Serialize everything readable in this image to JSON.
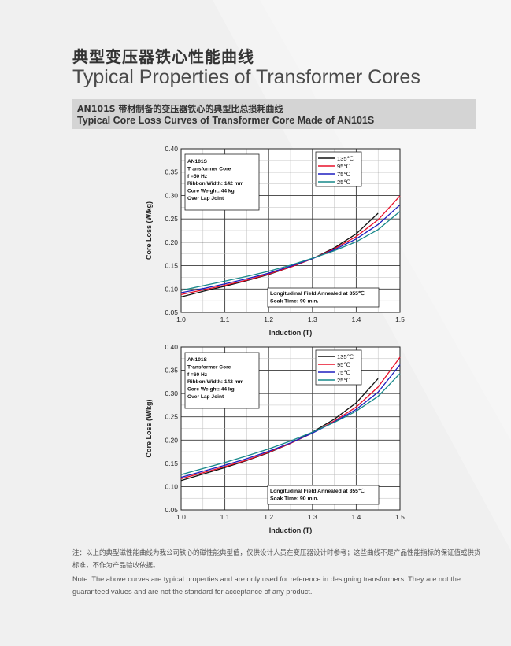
{
  "header": {
    "title_cn": "典型变压器铁心性能曲线",
    "title_en": "Typical Properties of Transformer Cores"
  },
  "subtitle": {
    "cn": "AN101S 带材制备的变压器铁心的典型比总损耗曲线",
    "en": "Typical Core Loss Curves of Transformer Core Made of AN101S"
  },
  "footer": {
    "note_cn": "注：以上的典型磁性能曲线为我公司铁心的磁性能典型值，仅供设计人员在变压器设计时参考；这些曲线不是产品性能指标的保证值或供货标准，不作为产品验收依据。",
    "note_en": "Note: The above curves are typical properties and are only used for reference in designing transformers. They are not the guaranteed values and are not the standard for acceptance of any product."
  },
  "chart_data": [
    {
      "type": "line",
      "xlabel": "Induction (T)",
      "ylabel": "Core Loss (W/kg)",
      "xlim": [
        1.0,
        1.5
      ],
      "ylim": [
        0.05,
        0.4
      ],
      "xticks": [
        "1.0",
        "1.1",
        "1.2",
        "1.3",
        "1.4",
        "1.5"
      ],
      "yticks": [
        "0.05",
        "0.10",
        "0.15",
        "0.20",
        "0.25",
        "0.30",
        "0.35",
        "0.40"
      ],
      "grid": true,
      "legend_position": "top-right",
      "info_box": [
        "AN101S",
        "Transformer Core",
        "f =50 Hz",
        "Ribbon Width: 142 mm",
        "Core Weight: 44 kg",
        "Over Lap Joint"
      ],
      "annotation": [
        "Longitudinal Field Annealed at 355℃",
        "Soak Time: 90 min."
      ],
      "series": [
        {
          "name": "135℃",
          "color": "#111111",
          "x": [
            1.0,
            1.05,
            1.1,
            1.15,
            1.2,
            1.25,
            1.3,
            1.35,
            1.4,
            1.45
          ],
          "values": [
            0.083,
            0.095,
            0.106,
            0.118,
            0.131,
            0.147,
            0.165,
            0.188,
            0.218,
            0.262
          ]
        },
        {
          "name": "95℃",
          "color": "#e8102a",
          "x": [
            1.0,
            1.05,
            1.1,
            1.15,
            1.2,
            1.25,
            1.3,
            1.35,
            1.4,
            1.45,
            1.5
          ],
          "values": [
            0.088,
            0.098,
            0.108,
            0.119,
            0.132,
            0.147,
            0.165,
            0.186,
            0.212,
            0.248,
            0.299
          ]
        },
        {
          "name": "75℃",
          "color": "#1f1fbf",
          "x": [
            1.0,
            1.05,
            1.1,
            1.15,
            1.2,
            1.25,
            1.3,
            1.35,
            1.4,
            1.45,
            1.5
          ],
          "values": [
            0.092,
            0.101,
            0.111,
            0.122,
            0.134,
            0.149,
            0.165,
            0.184,
            0.207,
            0.238,
            0.28
          ]
        },
        {
          "name": "25℃",
          "color": "#17888a",
          "x": [
            1.0,
            1.05,
            1.1,
            1.15,
            1.2,
            1.25,
            1.3,
            1.35,
            1.4,
            1.45,
            1.5
          ],
          "values": [
            0.097,
            0.107,
            0.117,
            0.127,
            0.138,
            0.151,
            0.166,
            0.182,
            0.201,
            0.227,
            0.266
          ]
        }
      ]
    },
    {
      "type": "line",
      "xlabel": "Induction (T)",
      "ylabel": "Core Loss (W/kg)",
      "xlim": [
        1.0,
        1.5
      ],
      "ylim": [
        0.05,
        0.4
      ],
      "xticks": [
        "1.0",
        "1.1",
        "1.2",
        "1.3",
        "1.4",
        "1.5"
      ],
      "yticks": [
        "0.05",
        "0.10",
        "0.15",
        "0.20",
        "0.25",
        "0.30",
        "0.35",
        "0.40"
      ],
      "grid": true,
      "legend_position": "top-right",
      "info_box": [
        "AN101S",
        "Transformer Core",
        "f =60 Hz",
        "Ribbon Width: 142 mm",
        "Core Weight: 44 kg",
        "Over Lap Joint"
      ],
      "annotation": [
        "Longitudinal Field Annealed at 355℃",
        "Soak Time: 90 min."
      ],
      "series": [
        {
          "name": "135℃",
          "color": "#111111",
          "x": [
            1.0,
            1.05,
            1.1,
            1.15,
            1.2,
            1.25,
            1.3,
            1.35,
            1.4,
            1.45
          ],
          "values": [
            0.113,
            0.127,
            0.141,
            0.156,
            0.173,
            0.193,
            0.217,
            0.245,
            0.28,
            0.332
          ]
        },
        {
          "name": "95℃",
          "color": "#e8102a",
          "x": [
            1.0,
            1.05,
            1.1,
            1.15,
            1.2,
            1.25,
            1.3,
            1.35,
            1.4,
            1.45,
            1.5
          ],
          "values": [
            0.117,
            0.13,
            0.143,
            0.157,
            0.174,
            0.193,
            0.215,
            0.241,
            0.271,
            0.314,
            0.378
          ]
        },
        {
          "name": "75℃",
          "color": "#1f1fbf",
          "x": [
            1.0,
            1.05,
            1.1,
            1.15,
            1.2,
            1.25,
            1.3,
            1.35,
            1.4,
            1.45,
            1.5
          ],
          "values": [
            0.12,
            0.133,
            0.146,
            0.16,
            0.176,
            0.194,
            0.215,
            0.239,
            0.266,
            0.303,
            0.362
          ]
        },
        {
          "name": "25℃",
          "color": "#17888a",
          "x": [
            1.0,
            1.05,
            1.1,
            1.15,
            1.2,
            1.25,
            1.3,
            1.35,
            1.4,
            1.45,
            1.5
          ],
          "values": [
            0.126,
            0.139,
            0.152,
            0.166,
            0.181,
            0.198,
            0.217,
            0.238,
            0.262,
            0.294,
            0.343
          ]
        }
      ]
    }
  ]
}
